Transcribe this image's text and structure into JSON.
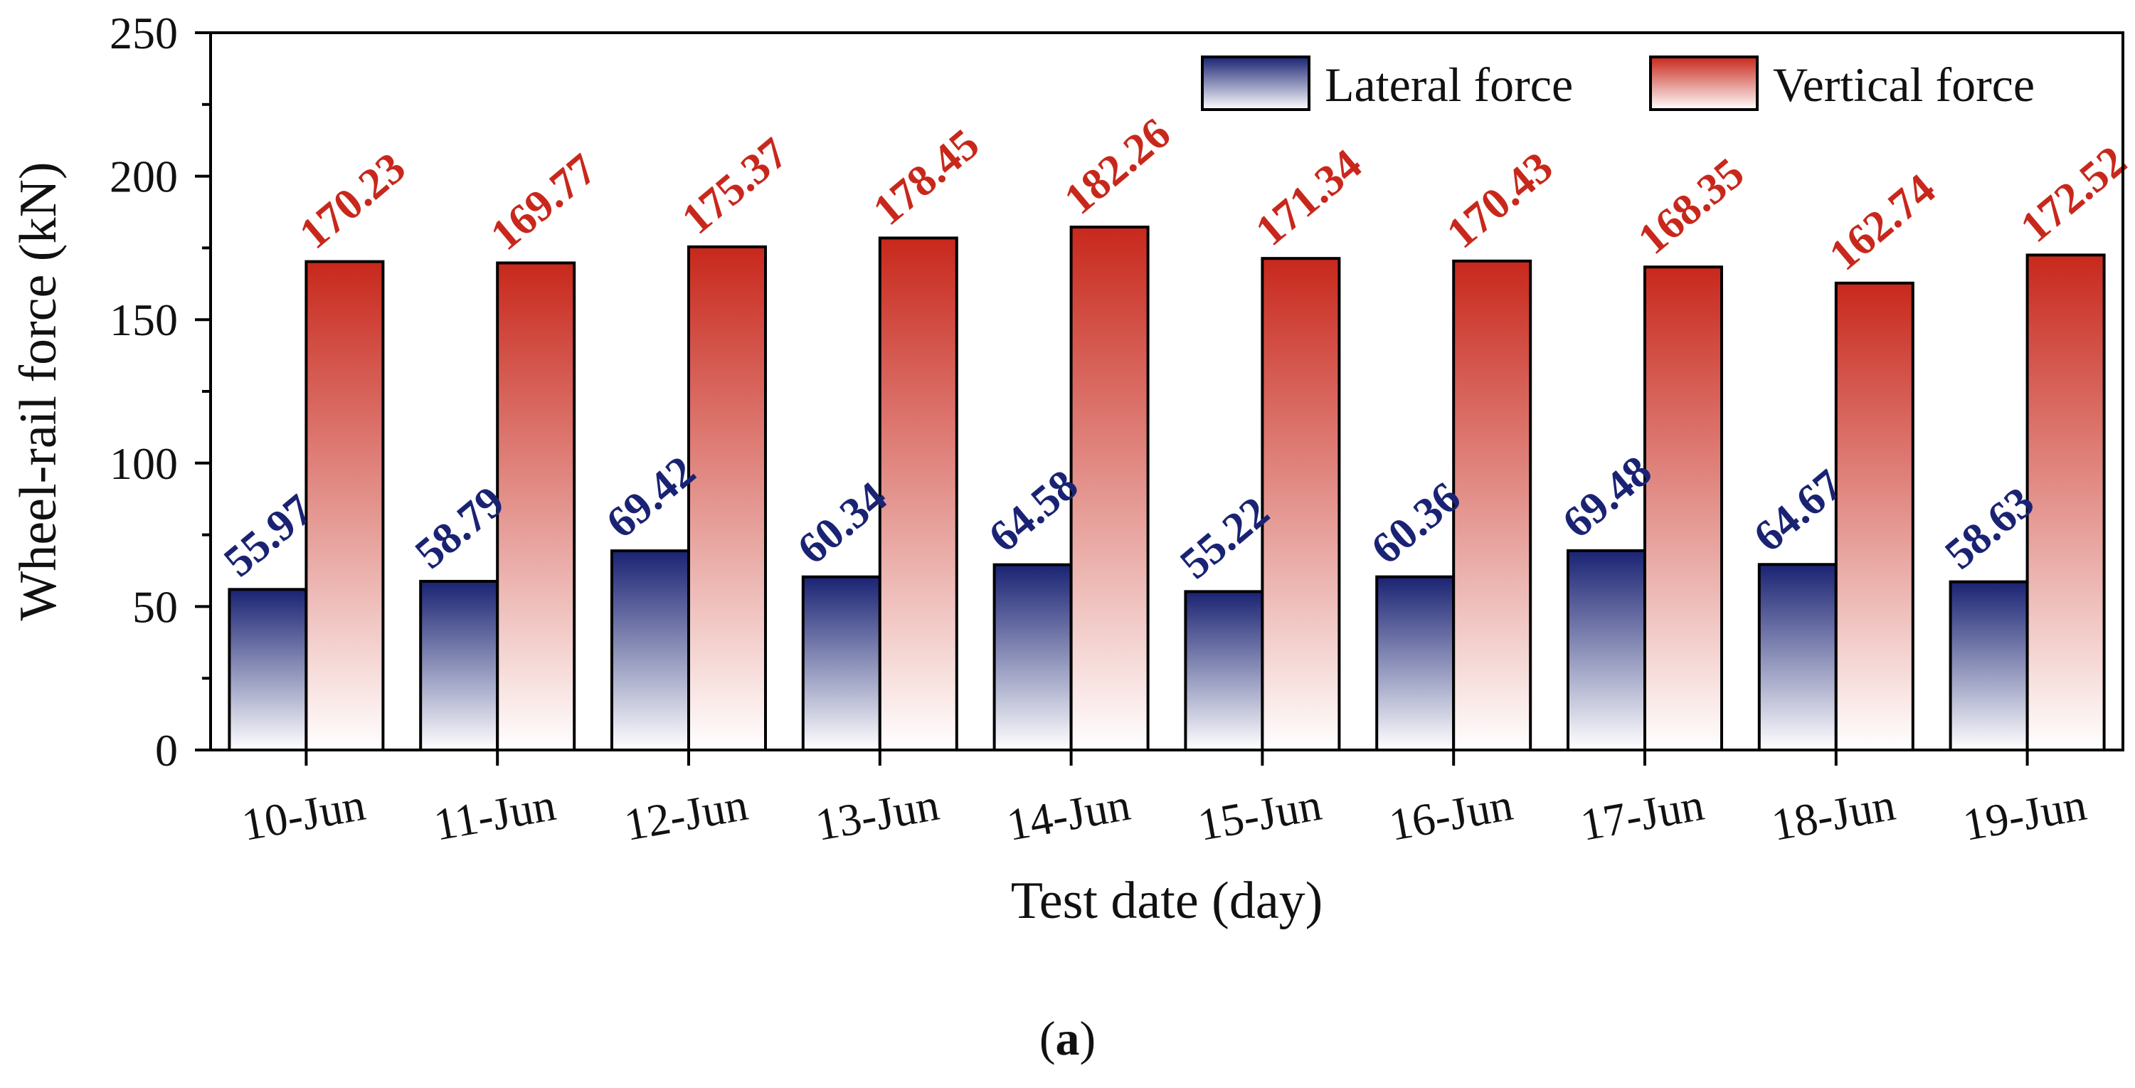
{
  "chart_data": {
    "type": "bar",
    "categories": [
      "10-Jun",
      "11-Jun",
      "12-Jun",
      "13-Jun",
      "14-Jun",
      "15-Jun",
      "16-Jun",
      "17-Jun",
      "18-Jun",
      "19-Jun"
    ],
    "series": [
      {
        "name": "Lateral force",
        "values": [
          55.97,
          58.79,
          69.42,
          60.34,
          64.58,
          55.22,
          60.36,
          69.48,
          64.67,
          58.63
        ],
        "labels": [
          "55.97",
          "58.79",
          "69.42",
          "60.34",
          "64.58",
          "55.22",
          "60.36",
          "69.48",
          "64.67",
          "58.63"
        ],
        "color": "#1a2373"
      },
      {
        "name": "Vertical force",
        "values": [
          170.23,
          169.77,
          175.37,
          178.45,
          182.26,
          171.34,
          170.43,
          168.35,
          162.74,
          172.52
        ],
        "labels": [
          "170.23",
          "169.77",
          "175.37",
          "178.45",
          "182.26",
          "171.34",
          "170.43",
          "168.35",
          "162.74",
          "172.52"
        ],
        "color": "#c8281c"
      }
    ],
    "xlabel": "Test date (day)",
    "ylabel": "Wheel-rail force (kN)",
    "ylim": [
      0,
      250
    ],
    "yticks": [
      0,
      50,
      100,
      150,
      200,
      250
    ],
    "ytick_labels": [
      "0",
      "50",
      "100",
      "150",
      "200",
      "250"
    ],
    "legend_position": "top-right"
  },
  "caption": {
    "open": "(",
    "letter": "a",
    "close": ")"
  }
}
